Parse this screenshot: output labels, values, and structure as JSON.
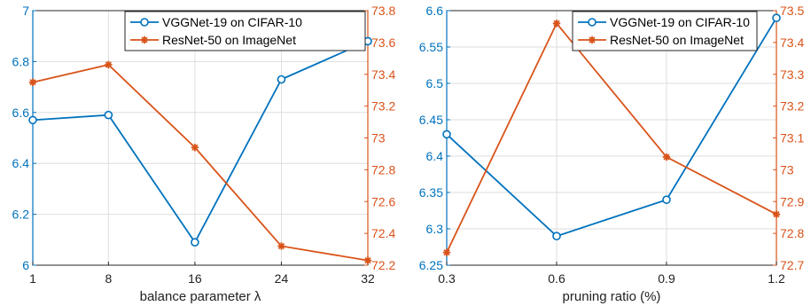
{
  "colors": {
    "left_axis": "#0072BD",
    "right_axis": "#D95319",
    "vgg": "#0072BD",
    "resnet": "#D95319",
    "grid": "#dedede",
    "frame": "#262626"
  },
  "chart_data": [
    {
      "type": "line",
      "xlabel": "balance parameter λ",
      "x": [
        1,
        8,
        16,
        24,
        32
      ],
      "x_ticks": [
        "1",
        "8",
        "16",
        "24",
        "32"
      ],
      "xlim": [
        1,
        32
      ],
      "ylim_left": [
        6,
        7
      ],
      "y_left_ticks": [
        "6",
        "6.2",
        "6.4",
        "6.6",
        "6.8",
        "7"
      ],
      "ylim_right": [
        72.2,
        73.8
      ],
      "y_right_ticks": [
        "72.2",
        "72.4",
        "72.6",
        "72.8",
        "73",
        "73.2",
        "73.4",
        "73.6",
        "73.8"
      ],
      "grid": true,
      "legend_position": "top-right",
      "series": [
        {
          "name": "VGGNet-19 on CIFAR-10",
          "axis": "left",
          "marker": "circle",
          "values": [
            6.57,
            6.59,
            6.09,
            6.73,
            6.88
          ]
        },
        {
          "name": "ResNet-50 on ImageNet",
          "axis": "right",
          "marker": "star",
          "values": [
            73.35,
            73.46,
            72.94,
            72.32,
            72.23
          ]
        }
      ]
    },
    {
      "type": "line",
      "xlabel": "pruning ratio (%)",
      "x": [
        0.3,
        0.6,
        0.9,
        1.2
      ],
      "x_ticks": [
        "0.3",
        "0.6",
        "0.9",
        "1.2"
      ],
      "xlim": [
        0.3,
        1.2
      ],
      "ylim_left": [
        6.25,
        6.6
      ],
      "y_left_ticks": [
        "6.25",
        "6.3",
        "6.35",
        "6.4",
        "6.45",
        "6.5",
        "6.55",
        "6.6"
      ],
      "ylim_right": [
        72.7,
        73.5
      ],
      "y_right_ticks": [
        "72.7",
        "72.8",
        "72.9",
        "73",
        "73.1",
        "73.2",
        "73.3",
        "73.4",
        "73.5"
      ],
      "grid": true,
      "legend_position": "top-right",
      "series": [
        {
          "name": "VGGNet-19 on CIFAR-10",
          "axis": "left",
          "marker": "circle",
          "values": [
            6.43,
            6.29,
            6.34,
            6.59
          ]
        },
        {
          "name": "ResNet-50 on ImageNet",
          "axis": "right",
          "marker": "star",
          "values": [
            72.74,
            73.46,
            73.04,
            72.86
          ]
        }
      ]
    }
  ]
}
